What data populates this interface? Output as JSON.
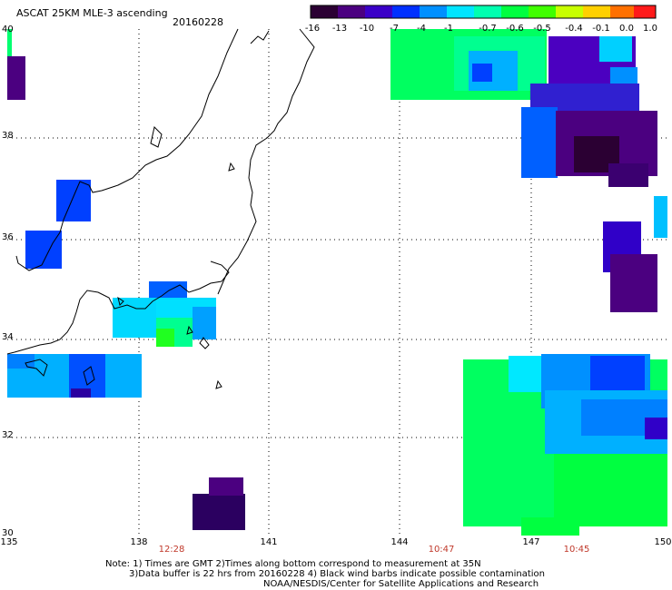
{
  "header": {
    "title": "ASCAT 25KM MLE-3 ascending",
    "date": "20160228"
  },
  "colorbar": {
    "labels": [
      "-16",
      "-13",
      "-10",
      "-7",
      "-4",
      "-1",
      "-0.7",
      "-0.6",
      "-0.5",
      "-0.4",
      "-0.1",
      "0.0",
      "1.0"
    ],
    "colors": [
      "#2b0033",
      "#4b0080",
      "#3a00c8",
      "#0030ff",
      "#0090ff",
      "#00e5ff",
      "#00ffb0",
      "#00ff40",
      "#40ff00",
      "#c8ff00",
      "#ffd000",
      "#ff7000",
      "#ff1a1a"
    ]
  },
  "axes": {
    "lat_labels": [
      "40",
      "38",
      "36",
      "34",
      "32",
      "30"
    ],
    "lon_labels": [
      "135",
      "138",
      "141",
      "144",
      "147",
      "150"
    ],
    "time_labels": [
      "12:28",
      "10:47",
      "10:45"
    ]
  },
  "notes": {
    "line1": "Note: 1) Times are GMT 2)Times along bottom correspond to measurement at 35N",
    "line2": "3)Data buffer is 22 hrs from 20160228 4) Black wind barbs indicate possible contamination",
    "line3": "NOAA/NESDIS/Center for Satellite Applications and Research"
  }
}
